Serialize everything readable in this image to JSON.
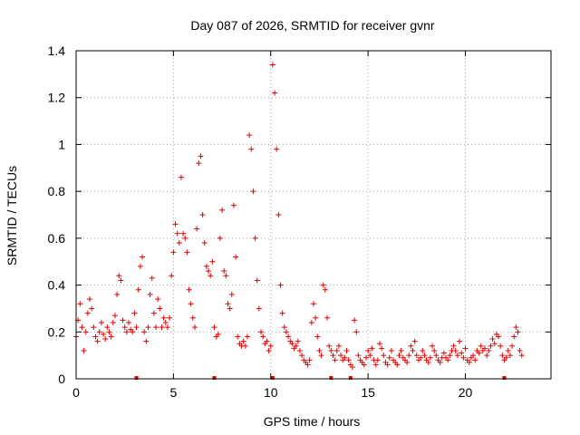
{
  "chart_data": {
    "type": "scatter",
    "title": "Day 087 of 2026, SRMTID for receiver gvnr",
    "xlabel": "GPS time / hours",
    "ylabel": "SRMTID / TECUs",
    "xlim": [
      0,
      24.4
    ],
    "ylim": [
      0,
      1.4
    ],
    "xticks": [
      0,
      5,
      10,
      15,
      20
    ],
    "yticks": [
      0,
      0.2,
      0.4,
      0.6,
      0.8,
      1,
      1.2,
      1.4
    ],
    "xtick_labels": [
      "0",
      "5",
      "10",
      "15",
      "20"
    ],
    "ytick_labels": [
      "0",
      "0.2",
      "0.4",
      "0.6",
      "0.8",
      "1",
      "1.2",
      "1.4"
    ],
    "grid": true,
    "marker": "+",
    "series_color": "#e00000",
    "gap_markers_x": [
      3.1,
      7.1,
      10.1,
      13.1,
      14.1,
      22.0
    ],
    "x": [
      0.0,
      0.1,
      0.2,
      0.3,
      0.4,
      0.5,
      0.6,
      0.7,
      0.8,
      0.9,
      1.0,
      1.1,
      1.2,
      1.3,
      1.4,
      1.5,
      1.6,
      1.7,
      1.8,
      1.9,
      2.0,
      2.1,
      2.2,
      2.3,
      2.4,
      2.5,
      2.6,
      2.7,
      2.8,
      2.9,
      3.0,
      3.1,
      3.2,
      3.3,
      3.4,
      3.5,
      3.6,
      3.7,
      3.8,
      3.9,
      4.0,
      4.1,
      4.2,
      4.3,
      4.4,
      4.5,
      4.6,
      4.7,
      4.8,
      4.9,
      5.0,
      5.1,
      5.2,
      5.3,
      5.4,
      5.5,
      5.6,
      5.7,
      5.8,
      5.9,
      6.0,
      6.1,
      6.2,
      6.3,
      6.4,
      6.5,
      6.6,
      6.7,
      6.8,
      6.9,
      7.0,
      7.1,
      7.2,
      7.3,
      7.4,
      7.5,
      7.6,
      7.7,
      7.8,
      7.9,
      8.0,
      8.1,
      8.2,
      8.3,
      8.4,
      8.5,
      8.6,
      8.7,
      8.8,
      8.9,
      9.0,
      9.1,
      9.2,
      9.3,
      9.4,
      9.5,
      9.6,
      9.7,
      9.8,
      9.9,
      10.0,
      10.1,
      10.2,
      10.3,
      10.4,
      10.5,
      10.6,
      10.7,
      10.8,
      10.9,
      11.0,
      11.1,
      11.2,
      11.3,
      11.4,
      11.5,
      11.6,
      11.7,
      11.8,
      11.9,
      12.0,
      12.1,
      12.2,
      12.3,
      12.4,
      12.5,
      12.6,
      12.7,
      12.8,
      12.9,
      13.0,
      13.1,
      13.2,
      13.3,
      13.4,
      13.5,
      13.6,
      13.7,
      13.8,
      13.9,
      14.0,
      14.1,
      14.2,
      14.3,
      14.4,
      14.5,
      14.6,
      14.7,
      14.8,
      14.9,
      15.0,
      15.1,
      15.2,
      15.3,
      15.4,
      15.5,
      15.6,
      15.7,
      15.8,
      15.9,
      16.0,
      16.1,
      16.2,
      16.3,
      16.4,
      16.5,
      16.6,
      16.7,
      16.8,
      16.9,
      17.0,
      17.1,
      17.2,
      17.3,
      17.4,
      17.5,
      17.6,
      17.7,
      17.8,
      17.9,
      18.0,
      18.1,
      18.2,
      18.3,
      18.4,
      18.5,
      18.6,
      18.7,
      18.8,
      18.9,
      19.0,
      19.1,
      19.2,
      19.3,
      19.4,
      19.5,
      19.6,
      19.7,
      19.8,
      19.9,
      20.0,
      20.1,
      20.2,
      20.3,
      20.4,
      20.5,
      20.6,
      20.7,
      20.8,
      20.9,
      21.0,
      21.1,
      21.2,
      21.3,
      21.4,
      21.5,
      21.6,
      21.7,
      21.8,
      21.9,
      22.0,
      22.1,
      22.2,
      22.3,
      22.4,
      22.5,
      22.6,
      22.7,
      22.8,
      22.9
    ],
    "values": [
      0.18,
      0.25,
      0.32,
      0.22,
      0.12,
      0.2,
      0.28,
      0.34,
      0.3,
      0.22,
      0.18,
      0.16,
      0.2,
      0.24,
      0.19,
      0.17,
      0.22,
      0.2,
      0.18,
      0.24,
      0.27,
      0.36,
      0.44,
      0.42,
      0.25,
      0.22,
      0.2,
      0.24,
      0.21,
      0.2,
      0.28,
      0.22,
      0.38,
      0.48,
      0.52,
      0.2,
      0.16,
      0.22,
      0.36,
      0.43,
      0.28,
      0.22,
      0.34,
      0.3,
      0.22,
      0.26,
      0.24,
      0.22,
      0.26,
      0.44,
      0.54,
      0.66,
      0.62,
      0.58,
      0.86,
      0.62,
      0.6,
      0.54,
      0.38,
      0.32,
      0.26,
      0.22,
      0.64,
      0.92,
      0.95,
      0.7,
      0.58,
      0.48,
      0.46,
      0.44,
      0.5,
      0.22,
      0.18,
      0.19,
      0.6,
      0.72,
      0.46,
      0.44,
      0.32,
      0.3,
      0.36,
      0.74,
      0.52,
      0.18,
      0.15,
      0.14,
      0.16,
      0.14,
      0.18,
      1.04,
      0.98,
      0.8,
      0.6,
      0.42,
      0.3,
      0.2,
      0.18,
      0.15,
      0.16,
      0.12,
      0.14,
      1.34,
      1.22,
      0.98,
      0.7,
      0.4,
      0.28,
      0.22,
      0.2,
      0.18,
      0.16,
      0.15,
      0.13,
      0.14,
      0.16,
      0.12,
      0.1,
      0.08,
      0.07,
      0.06,
      0.08,
      0.24,
      0.32,
      0.26,
      0.18,
      0.12,
      0.1,
      0.4,
      0.38,
      0.26,
      0.14,
      0.12,
      0.1,
      0.08,
      0.12,
      0.14,
      0.1,
      0.08,
      0.09,
      0.12,
      0.08,
      0.06,
      0.05,
      0.25,
      0.2,
      0.1,
      0.08,
      0.07,
      0.06,
      0.09,
      0.12,
      0.1,
      0.13,
      0.08,
      0.06,
      0.08,
      0.15,
      0.13,
      0.1,
      0.07,
      0.06,
      0.09,
      0.12,
      0.08,
      0.07,
      0.06,
      0.1,
      0.12,
      0.09,
      0.08,
      0.07,
      0.1,
      0.14,
      0.12,
      0.16,
      0.1,
      0.08,
      0.09,
      0.12,
      0.1,
      0.08,
      0.07,
      0.09,
      0.14,
      0.12,
      0.1,
      0.08,
      0.07,
      0.09,
      0.11,
      0.09,
      0.08,
      0.1,
      0.12,
      0.14,
      0.12,
      0.1,
      0.16,
      0.11,
      0.09,
      0.13,
      0.08,
      0.07,
      0.09,
      0.1,
      0.08,
      0.12,
      0.11,
      0.14,
      0.12,
      0.13,
      0.1,
      0.12,
      0.14,
      0.17,
      0.15,
      0.19,
      0.18,
      0.14,
      0.1,
      0.08,
      0.09,
      0.12,
      0.1,
      0.14,
      0.18,
      0.22,
      0.2,
      0.12,
      0.1
    ]
  }
}
